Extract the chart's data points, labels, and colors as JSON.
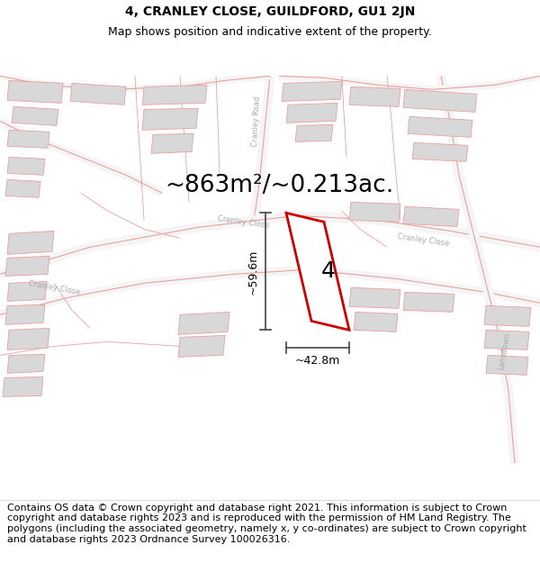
{
  "title_line1": "4, CRANLEY CLOSE, GUILDFORD, GU1 2JN",
  "title_line2": "Map shows position and indicative extent of the property.",
  "area_text": "~863m²/~0.213ac.",
  "plot_number": "4",
  "dim_width": "~42.8m",
  "dim_height": "~59.6m",
  "map_bg": "#ffffff",
  "building_fill": "#d8d8d8",
  "road_line_color": "#e8a0a0",
  "property_color": "#cc0000",
  "dim_color": "#444444",
  "label_color": "#aaaaaa",
  "footer_text": "Contains OS data © Crown copyright and database right 2021. This information is subject to Crown copyright and database rights 2023 and is reproduced with the permission of HM Land Registry. The polygons (including the associated geometry, namely x, y co-ordinates) are subject to Crown copyright and database rights 2023 Ordnance Survey 100026316.",
  "title_fontsize": 10,
  "subtitle_fontsize": 9,
  "area_fontsize": 19,
  "plot_num_fontsize": 18,
  "dim_fontsize": 9,
  "road_label_fontsize": 6,
  "footer_fontsize": 8
}
